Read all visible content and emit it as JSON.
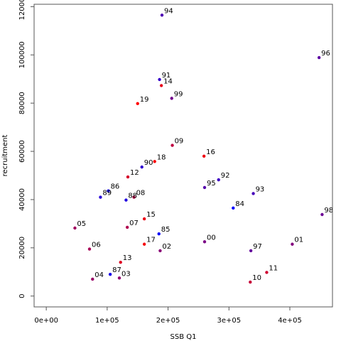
{
  "chart_data": {
    "type": "scatter",
    "title": "",
    "xlabel": "SSB Q1",
    "ylabel": "recruitment",
    "xlim": [
      -20000,
      470000
    ],
    "ylim": [
      -4500,
      121000
    ],
    "x_ticks": [
      {
        "value": 0,
        "label": "0e+00"
      },
      {
        "value": 100000,
        "label": "1e+05"
      },
      {
        "value": 200000,
        "label": "2e+05"
      },
      {
        "value": 300000,
        "label": "3e+05"
      },
      {
        "value": 400000,
        "label": "4e+05"
      }
    ],
    "y_ticks": [
      {
        "value": 0,
        "label": "0"
      },
      {
        "value": 20000,
        "label": "20000"
      },
      {
        "value": 40000,
        "label": "40000"
      },
      {
        "value": 60000,
        "label": "60000"
      },
      {
        "value": 80000,
        "label": "80000"
      },
      {
        "value": 100000,
        "label": "100000"
      },
      {
        "value": 120000,
        "label": "120000"
      }
    ],
    "grid": false,
    "legend": "none",
    "colors": {
      "early": "#0000ff",
      "late": "#ff0000",
      "frame": "#555555"
    },
    "points": [
      {
        "label": "84",
        "x": 307000,
        "y": 36500,
        "c": 0.0
      },
      {
        "label": "85",
        "x": 185000,
        "y": 25800,
        "c": 0.03
      },
      {
        "label": "86",
        "x": 102000,
        "y": 43600,
        "c": 0.06
      },
      {
        "label": "87",
        "x": 105000,
        "y": 9000,
        "c": 0.09
      },
      {
        "label": "88",
        "x": 131000,
        "y": 39800,
        "c": 0.12
      },
      {
        "label": "89",
        "x": 89000,
        "y": 41000,
        "c": 0.15
      },
      {
        "label": "90",
        "x": 157000,
        "y": 53500,
        "c": 0.18
      },
      {
        "label": "91",
        "x": 186000,
        "y": 89800,
        "c": 0.21
      },
      {
        "label": "92",
        "x": 283000,
        "y": 48200,
        "c": 0.24
      },
      {
        "label": "93",
        "x": 340000,
        "y": 42500,
        "c": 0.27
      },
      {
        "label": "94",
        "x": 190000,
        "y": 116500,
        "c": 0.3
      },
      {
        "label": "95",
        "x": 260000,
        "y": 45000,
        "c": 0.33
      },
      {
        "label": "96",
        "x": 448000,
        "y": 98900,
        "c": 0.36
      },
      {
        "label": "97",
        "x": 336000,
        "y": 18800,
        "c": 0.39
      },
      {
        "label": "98",
        "x": 453000,
        "y": 33800,
        "c": 0.42
      },
      {
        "label": "99",
        "x": 206000,
        "y": 82000,
        "c": 0.45
      },
      {
        "label": "00",
        "x": 260000,
        "y": 22500,
        "c": 0.48
      },
      {
        "label": "01",
        "x": 404000,
        "y": 21500,
        "c": 0.51
      },
      {
        "label": "02",
        "x": 187000,
        "y": 18800,
        "c": 0.54
      },
      {
        "label": "03",
        "x": 120000,
        "y": 7500,
        "c": 0.57
      },
      {
        "label": "04",
        "x": 76000,
        "y": 7000,
        "c": 0.6
      },
      {
        "label": "05",
        "x": 47000,
        "y": 28200,
        "c": 0.63
      },
      {
        "label": "06",
        "x": 71000,
        "y": 19500,
        "c": 0.66
      },
      {
        "label": "07",
        "x": 133000,
        "y": 28500,
        "c": 0.69
      },
      {
        "label": "08",
        "x": 144000,
        "y": 41000,
        "c": 0.72
      },
      {
        "label": "09",
        "x": 207000,
        "y": 62500,
        "c": 0.75
      },
      {
        "label": "10",
        "x": 335000,
        "y": 5800,
        "c": 0.78
      },
      {
        "label": "11",
        "x": 362000,
        "y": 9800,
        "c": 0.81
      },
      {
        "label": "12",
        "x": 134000,
        "y": 49400,
        "c": 0.84
      },
      {
        "label": "13",
        "x": 122000,
        "y": 14000,
        "c": 0.87
      },
      {
        "label": "14",
        "x": 189000,
        "y": 87300,
        "c": 0.9
      },
      {
        "label": "15",
        "x": 161000,
        "y": 32000,
        "c": 0.92
      },
      {
        "label": "16",
        "x": 259000,
        "y": 58000,
        "c": 0.94
      },
      {
        "label": "17",
        "x": 161000,
        "y": 21500,
        "c": 0.96
      },
      {
        "label": "18",
        "x": 178000,
        "y": 55800,
        "c": 0.98
      },
      {
        "label": "19",
        "x": 150000,
        "y": 79800,
        "c": 1.0
      }
    ]
  }
}
